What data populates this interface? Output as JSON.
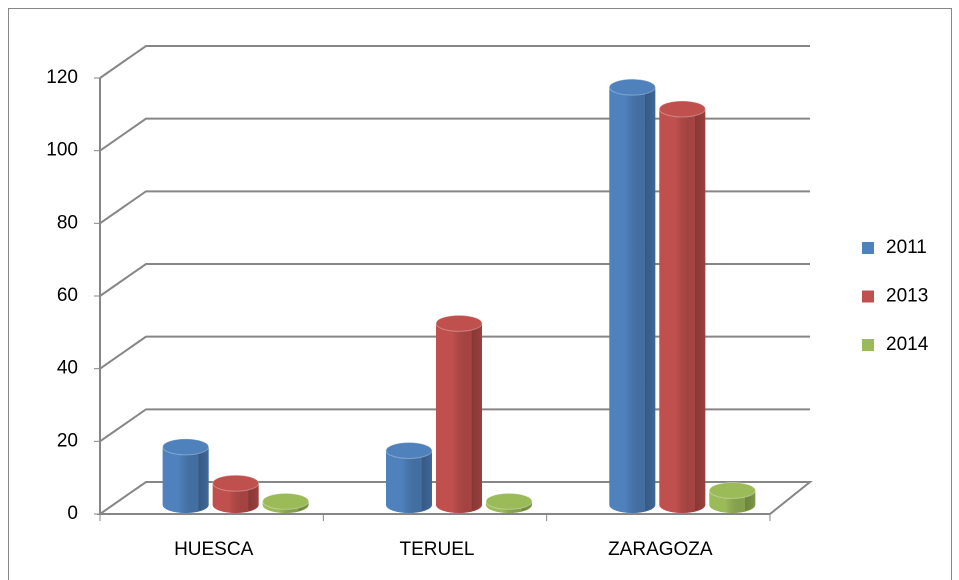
{
  "chart_data": {
    "type": "bar3d",
    "categories": [
      "HUESCA",
      "TERUEL",
      "ZARAGOZA"
    ],
    "series": [
      {
        "name": "2011",
        "color": "#4f81bd",
        "values": [
          16,
          15,
          115
        ]
      },
      {
        "name": "2013",
        "color": "#c0504d",
        "values": [
          6,
          50,
          109
        ]
      },
      {
        "name": "2014",
        "color": "#9bbb59",
        "values": [
          1,
          1,
          4
        ]
      }
    ],
    "ylim": [
      0,
      120
    ],
    "yticks": [
      0,
      20,
      40,
      60,
      80,
      100,
      120
    ],
    "grid": true,
    "legend": "right"
  }
}
